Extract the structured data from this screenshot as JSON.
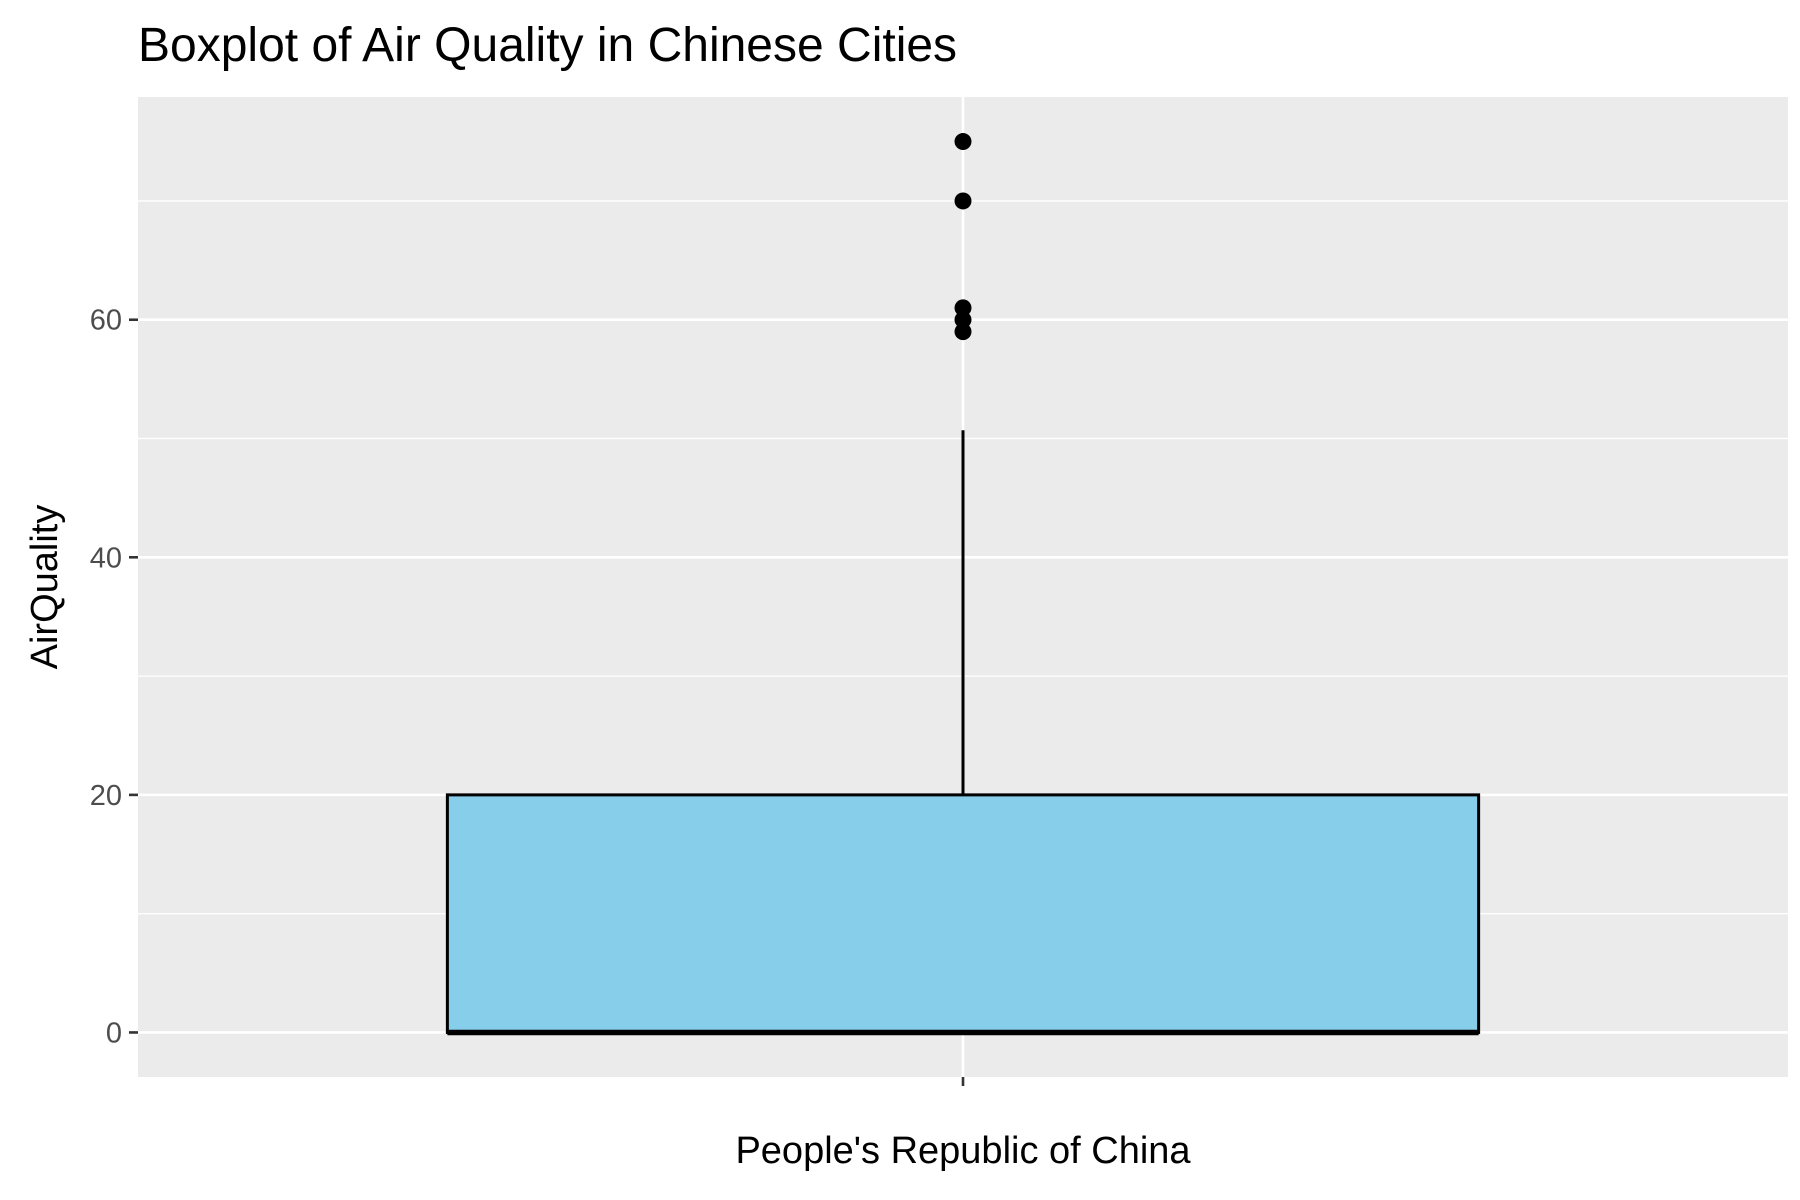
{
  "chart_data": {
    "type": "boxplot",
    "title": "Boxplot of Air Quality in Chinese Cities",
    "xlabel": "",
    "ylabel": "AirQuality",
    "categories": [
      "People's Republic of China"
    ],
    "boxes": [
      {
        "category": "People's Republic of China",
        "min": 0,
        "q1": 0,
        "median": 0,
        "q3": 20,
        "whisker_high": 50.7,
        "outliers": [
          59,
          60,
          61,
          70,
          75
        ]
      }
    ],
    "yticks": [
      0,
      20,
      40,
      60
    ],
    "ylim": [
      -3.75,
      78.75
    ],
    "grid": true,
    "colors": {
      "panel": "#ebebeb",
      "grid": "#ffffff",
      "box_fill": "#87ceeb",
      "box_line": "#000000",
      "point": "#000000",
      "tick_text": "#4d4d4d"
    }
  }
}
